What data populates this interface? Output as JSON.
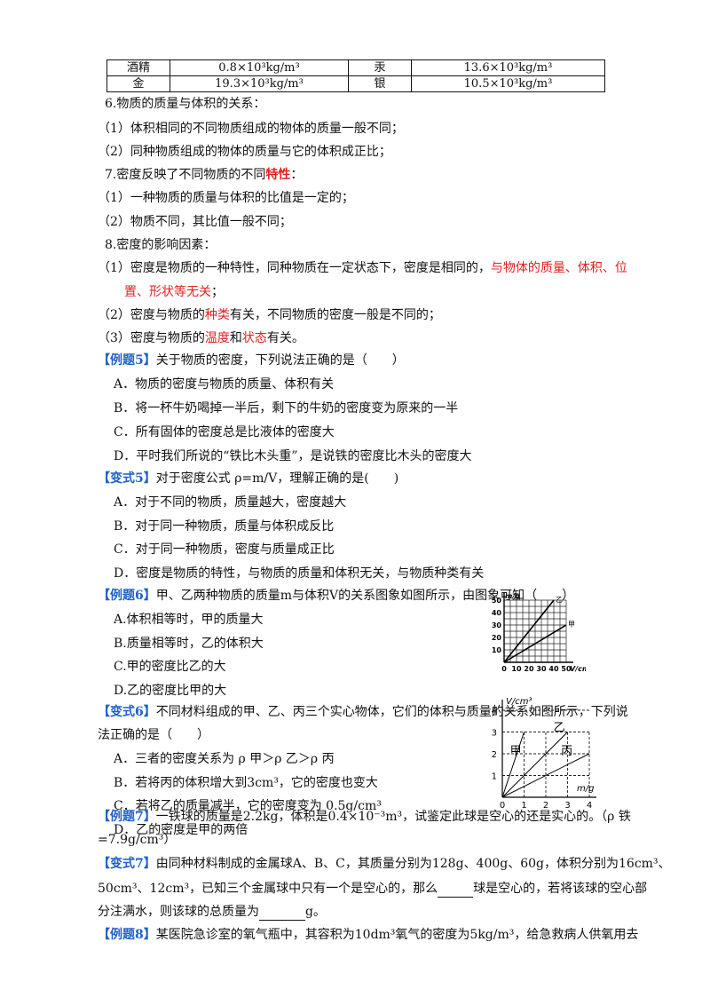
{
  "table": {
    "rows": [
      [
        "酒精",
        "0.8×10³kg/m³",
        "汞",
        "13.6×10³kg/m³"
      ],
      [
        "金",
        "19.3×10³kg/m³",
        "银",
        "10.5×10³kg/m³"
      ]
    ]
  },
  "s6": {
    "title": "6.物质的质量与体积的关系：",
    "p1": "（1）体积相同的不同物质组成的物体的质量一般不同；",
    "p2": "（2）同种物质组成的物体的质量与它的体积成正比；"
  },
  "s7": {
    "title": "7.密度反映了不同物质的不同",
    "title_red": "特性",
    "title_end": "：",
    "p1": "（1）一种物质的质量与体积的比值是一定的；",
    "p2": "（2）物质不同，其比值一般不同；"
  },
  "s8": {
    "title": "8.密度的影响因素：",
    "p1a": "（1）密度是物质的一种特性，同种物质在一定状态下，密度是相同的，",
    "p1b": "与物体的质量、体积、位",
    "p1c": "置、形状等无关",
    "p1d": "；",
    "p2a": "（2）密度与物质的",
    "p2b": "种类",
    "p2c": "有关，不同物质的密度一般是不同的；",
    "p3a": "（3）密度与物质的",
    "p3b": "温度",
    "p3c": "和",
    "p3d": "状态",
    "p3e": "有关。"
  },
  "ex5": {
    "tag": "【例题5】",
    "q": "关于物质的密度，下列说法正确的是（　　）",
    "A": "A．物质的密度与物质的质量、体积有关",
    "B": "B．将一杯牛奶喝掉一半后，剩下的牛奶的密度变为原来的一半",
    "C": "C．所有固体的密度总是比液体的密度大",
    "D": "D．平时我们所说的“铁比木头重”，是说铁的密度比木头的密度大"
  },
  "var5": {
    "tag": "【变式5】",
    "q": "对于密度公式 ρ=m/V，理解正确的是(　　)",
    "A": "A．对于不同的物质，质量越大，密度越大",
    "B": "B．对于同一种物质，质量与体积成反比",
    "C": "C．对于同一种物质，密度与质量成正比",
    "D": "D．密度是物质的特性，与物质的质量和体积无关，与物质种类有关"
  },
  "ex6": {
    "tag": "【例题6】",
    "q": "甲、乙两种物质的质量m与体积V的关系图象如图所示，由图象可知（　　）",
    "A": "A.体积相等时，甲的质量大",
    "B": "B.质量相等时，乙的体积大",
    "C": "C.甲的密度比乙的大",
    "D": "D.乙的密度比甲的大"
  },
  "var6": {
    "tag": "【变式6】",
    "q1": "不同材料组成的甲、乙、丙三个实心物体，它们的体积与质量的关系如图所示，下列说",
    "q2": "法正确的是（　　）",
    "A": "A．三者的密度关系为 ρ 甲＞ρ 乙＞ρ 丙",
    "B": "B．若将丙的体积增大到3cm³，它的密度也变大",
    "C": "C．若将乙的质量减半，它的密度变为 0.5g/cm³",
    "D": "D．乙的密度是甲的两倍"
  },
  "ex7": {
    "tag": "【例题7】",
    "q1": "一铁球的质量是2.2kg，体积是0.4×10⁻³m³，试鉴定此球是空心的还是实心的。（ρ 铁",
    "q2": "=7.9g/cm³）"
  },
  "var7": {
    "tag": "【变式7】",
    "q1": "由同种材料制成的金属球A、B、C，其质量分别为128g、400g、60g，体积分别为16cm³、",
    "q2a": "50cm³、12cm³，已知三个金属球中只有一个是空心的，那么",
    "q2b": "球是空心的，若将该球的空心部",
    "q3a": "分注满水，则该球的总质量为",
    "q3b": "g。"
  },
  "ex8": {
    "tag": "【例题8】",
    "q": "某医院急诊室的氧气瓶中，其容积为10dm³氧气的密度为5kg/m³，给急救病人供氧用去"
  },
  "chart_data": [
    {
      "type": "line",
      "xlabel": "V/cm³",
      "ylabel": "m/g",
      "x_ticks": [
        "0",
        "10",
        "20",
        "30",
        "40",
        "50"
      ],
      "y_ticks": [
        "10",
        "20",
        "30",
        "40",
        "50"
      ],
      "xlim": [
        0,
        50
      ],
      "ylim": [
        0,
        50
      ],
      "grid": true,
      "series": [
        {
          "name": "乙",
          "x": [
            0,
            40
          ],
          "y": [
            0,
            50
          ]
        },
        {
          "name": "甲",
          "x": [
            0,
            50
          ],
          "y": [
            0,
            30
          ]
        }
      ]
    },
    {
      "type": "line",
      "xlabel": "m/g",
      "ylabel": "V/cm³",
      "x_ticks": [
        "0",
        "1",
        "2",
        "3",
        "4"
      ],
      "y_ticks": [
        "1",
        "2",
        "3",
        "4"
      ],
      "xlim": [
        0,
        4
      ],
      "ylim": [
        0,
        4
      ],
      "grid": true,
      "series": [
        {
          "name": "甲",
          "x": [
            0,
            1
          ],
          "y": [
            0,
            3
          ]
        },
        {
          "name": "乙",
          "x": [
            0,
            3
          ],
          "y": [
            0,
            3
          ]
        },
        {
          "name": "丙",
          "x": [
            0,
            4
          ],
          "y": [
            0,
            2
          ]
        }
      ]
    }
  ]
}
